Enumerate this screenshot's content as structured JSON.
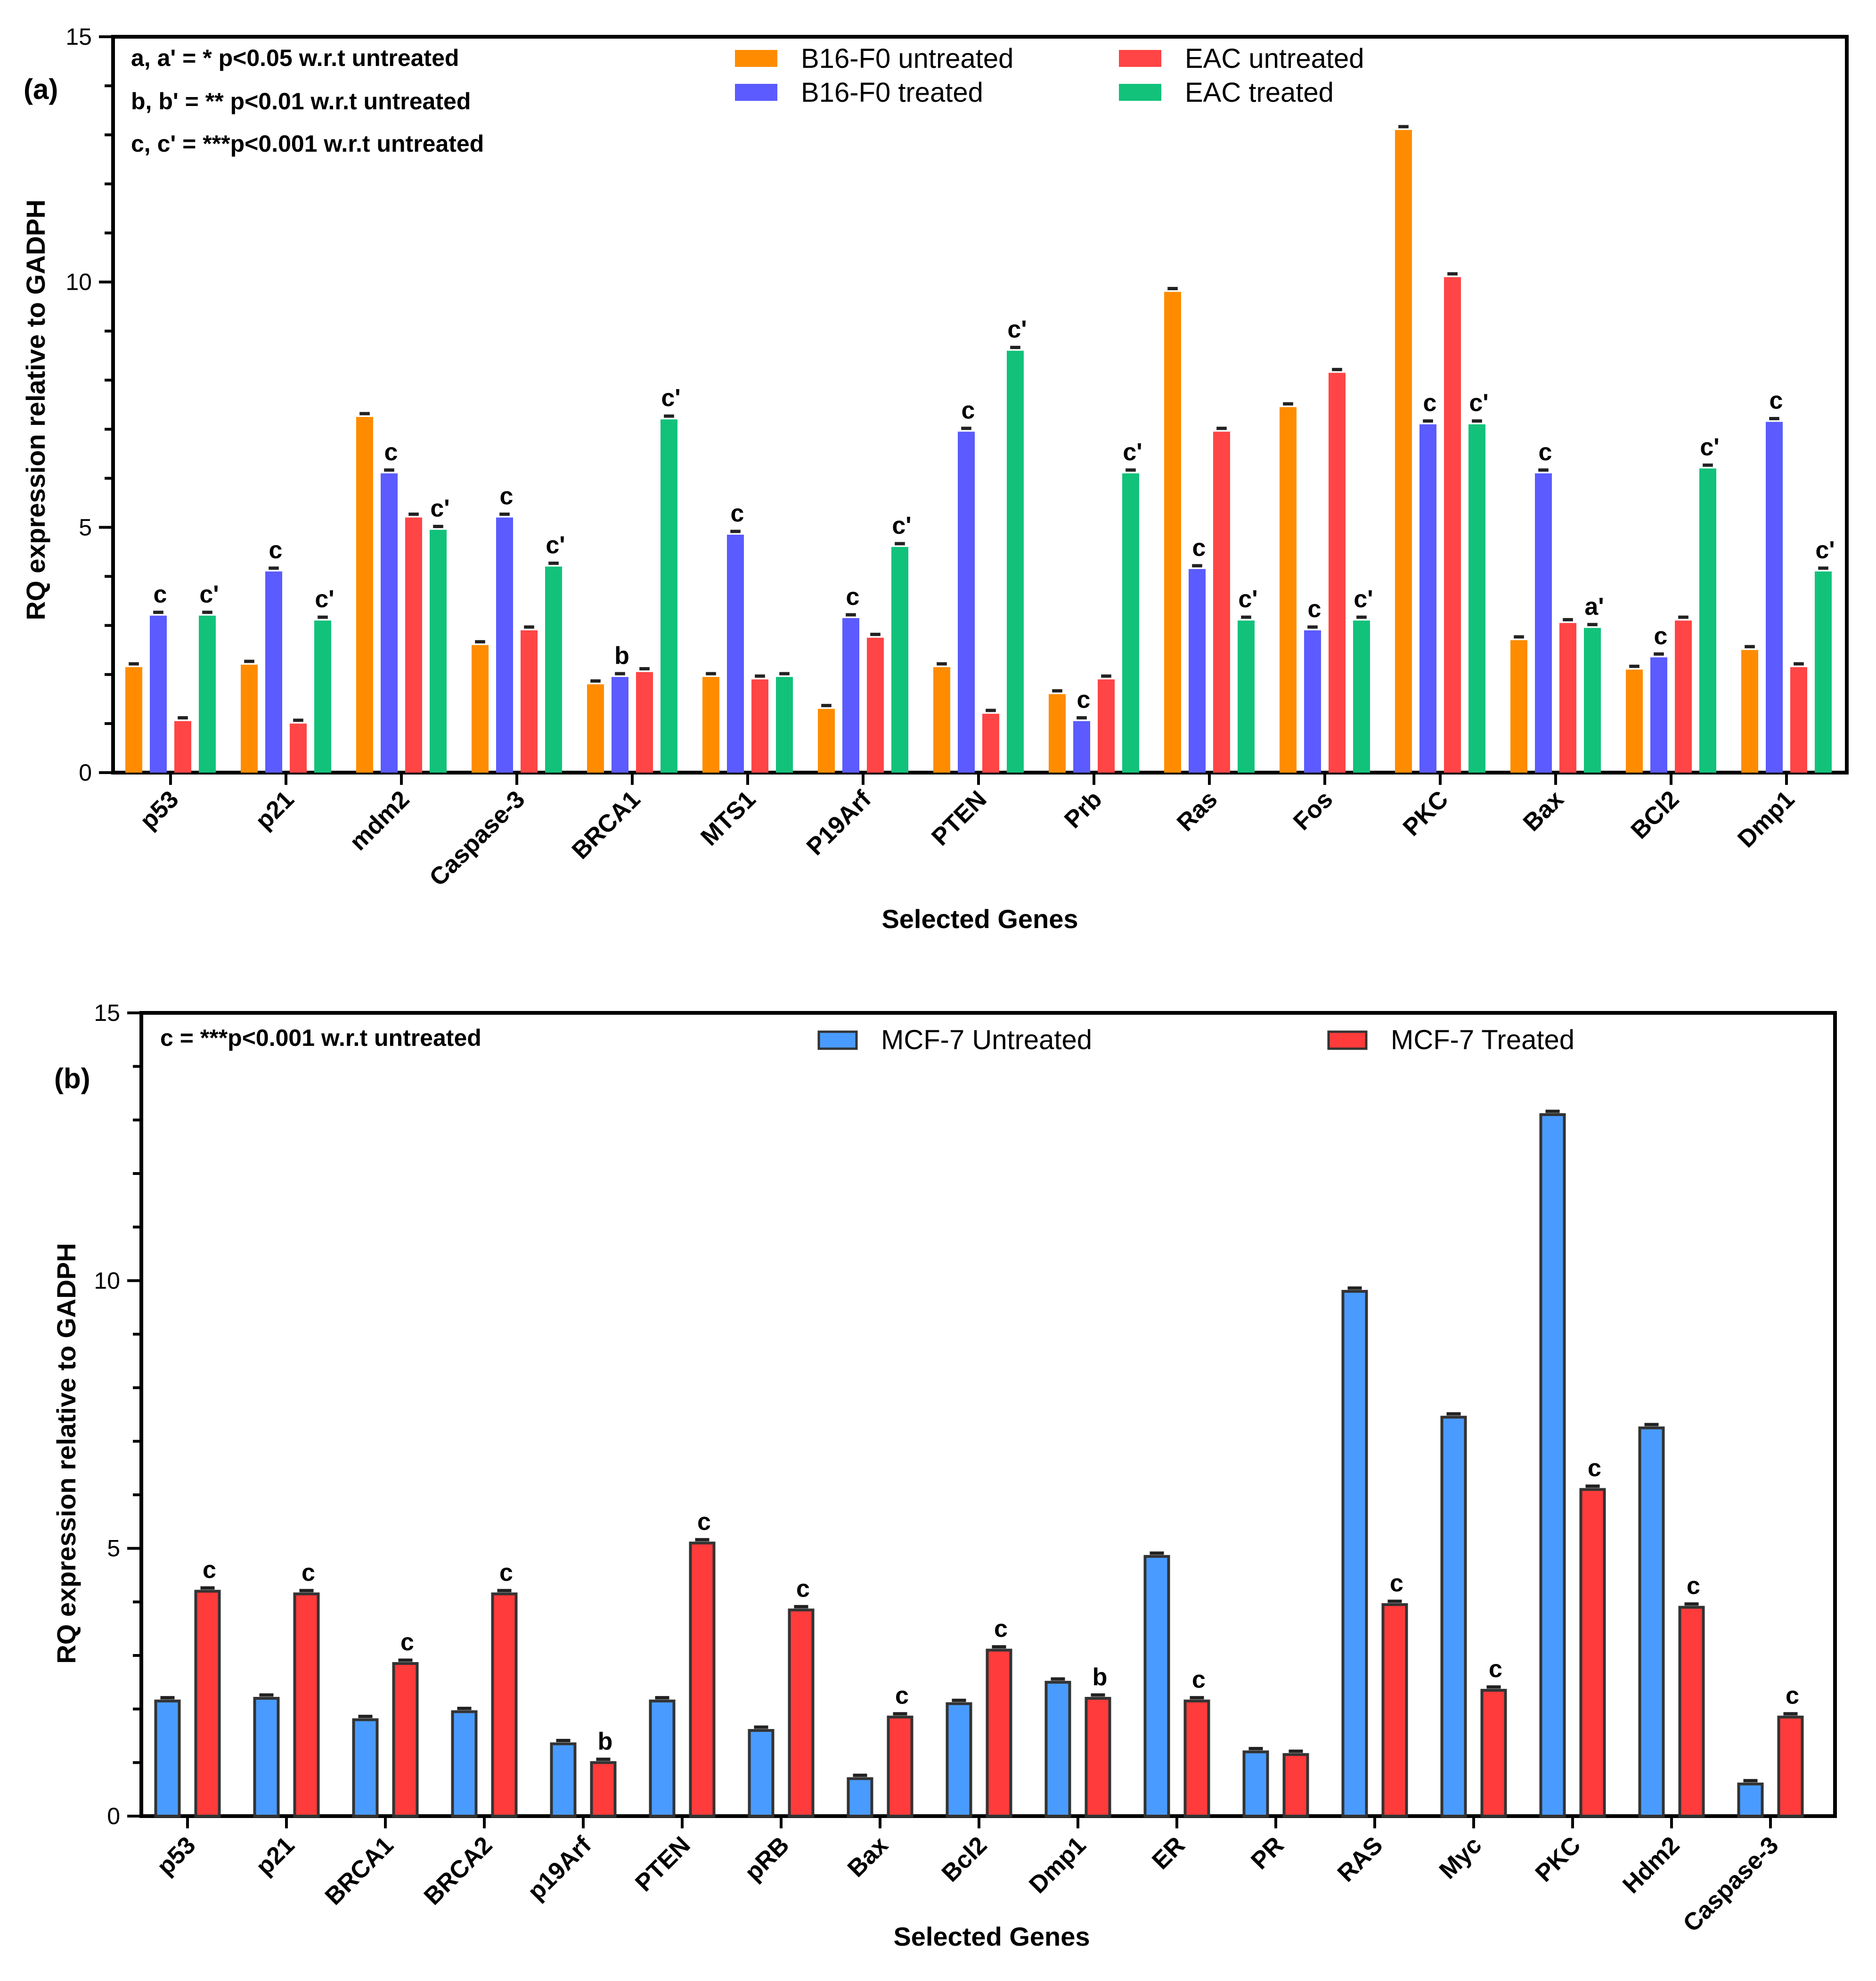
{
  "panels": [
    {
      "panel_label": "(a)",
      "colors": [
        "#ff8c00",
        "#5b5bff",
        "#ff4545",
        "#12c27a"
      ],
      "chart_data": {
        "type": "bar",
        "title": "",
        "xlabel": "Selected Genes",
        "ylabel": "RQ expression relative to GADPH",
        "ylim": [
          0,
          15
        ],
        "yticks": [
          0,
          5,
          10,
          15
        ],
        "categories": [
          "p53",
          "p21",
          "mdm2",
          "Caspase-3",
          "BRCA1",
          "MTS1",
          "P19Arf",
          "PTEN",
          "Prb",
          "Ras",
          "Fos",
          "PKC",
          "Bax",
          "BCl2",
          "Dmp1"
        ],
        "series": [
          {
            "name": "B16-F0 untreated",
            "values": [
              2.15,
              2.2,
              7.25,
              2.6,
              1.8,
              1.95,
              1.3,
              2.15,
              1.6,
              9.8,
              7.45,
              13.1,
              2.7,
              2.1,
              2.5
            ]
          },
          {
            "name": "B16-F0 treated",
            "values": [
              3.2,
              4.1,
              6.1,
              5.2,
              1.95,
              4.85,
              3.15,
              6.95,
              1.05,
              4.15,
              2.9,
              7.1,
              6.1,
              2.35,
              7.15
            ]
          },
          {
            "name": "EAC untreated",
            "values": [
              1.05,
              1.0,
              5.2,
              2.9,
              2.05,
              1.9,
              2.75,
              1.2,
              1.9,
              6.95,
              8.15,
              10.1,
              3.05,
              3.1,
              2.15
            ]
          },
          {
            "name": "EAC treated",
            "values": [
              3.2,
              3.1,
              4.95,
              4.2,
              7.2,
              1.95,
              4.6,
              8.6,
              6.1,
              3.1,
              3.1,
              7.1,
              2.95,
              6.2,
              4.1
            ]
          }
        ],
        "annotations": [
          [
            "",
            "c",
            "",
            "c'"
          ],
          [
            "",
            "c",
            "",
            "c'"
          ],
          [
            "",
            "c",
            "",
            "c'"
          ],
          [
            "",
            "c",
            "",
            "c'"
          ],
          [
            "",
            "b",
            "",
            "c'"
          ],
          [
            "",
            "c",
            "",
            ""
          ],
          [
            "",
            "c",
            "",
            "c'"
          ],
          [
            "",
            "c",
            "",
            "c'"
          ],
          [
            "",
            "c",
            "",
            "c'"
          ],
          [
            "",
            "c",
            "",
            "c'"
          ],
          [
            "",
            "c",
            "",
            "c'"
          ],
          [
            "",
            "c",
            "",
            "c'"
          ],
          [
            "",
            "c",
            "",
            "a'"
          ],
          [
            "",
            "c",
            "",
            "c'"
          ],
          [
            "",
            "c",
            "",
            "c'"
          ]
        ],
        "significance_notes": [
          "a, a' = * p<0.05 w.r.t untreated",
          "b, b' = ** p<0.01 w.r.t untreated",
          "c, c'  = ***p<0.001 w.r.t untreated"
        ],
        "legend_position": "top-right"
      }
    },
    {
      "panel_label": "(b)",
      "colors": [
        "#4a9bff",
        "#ff3b3b"
      ],
      "chart_data": {
        "type": "bar",
        "title": "",
        "xlabel": "Selected Genes",
        "ylabel": "RQ expression relative to GADPH",
        "ylim": [
          0,
          15
        ],
        "yticks": [
          0,
          5,
          10,
          15
        ],
        "categories": [
          "p53",
          "p21",
          "BRCA1",
          "BRCA2",
          "p19Arf",
          "PTEN",
          "pRB",
          "Bax",
          "Bcl2",
          "Dmp1",
          "ER",
          "PR",
          "RAS",
          "Myc",
          "PKC",
          "Hdm2",
          "Caspase-3"
        ],
        "series": [
          {
            "name": "MCF-7 Untreated",
            "values": [
              2.15,
              2.2,
              1.8,
              1.95,
              1.35,
              2.15,
              1.6,
              0.7,
              2.1,
              2.5,
              4.85,
              1.2,
              9.8,
              7.45,
              13.1,
              7.25,
              0.6
            ]
          },
          {
            "name": "MCF-7 Treated",
            "values": [
              4.2,
              4.15,
              2.85,
              4.15,
              1.0,
              5.1,
              3.85,
              1.85,
              3.1,
              2.2,
              2.15,
              1.15,
              3.95,
              2.35,
              6.1,
              3.9,
              1.85
            ]
          }
        ],
        "annotations": [
          [
            "",
            "c"
          ],
          [
            "",
            "c"
          ],
          [
            "",
            "c"
          ],
          [
            "",
            "c"
          ],
          [
            "",
            "b"
          ],
          [
            "",
            "c"
          ],
          [
            "",
            "c"
          ],
          [
            "",
            "c"
          ],
          [
            "",
            "c"
          ],
          [
            "",
            "b"
          ],
          [
            "",
            "c"
          ],
          [
            "",
            ""
          ],
          [
            "",
            "c"
          ],
          [
            "",
            "c"
          ],
          [
            "",
            "c"
          ],
          [
            "",
            "c"
          ],
          [
            "",
            "c"
          ]
        ],
        "significance_notes": [
          "c = ***p<0.001 w.r.t untreated"
        ],
        "legend_position": "top"
      }
    }
  ]
}
